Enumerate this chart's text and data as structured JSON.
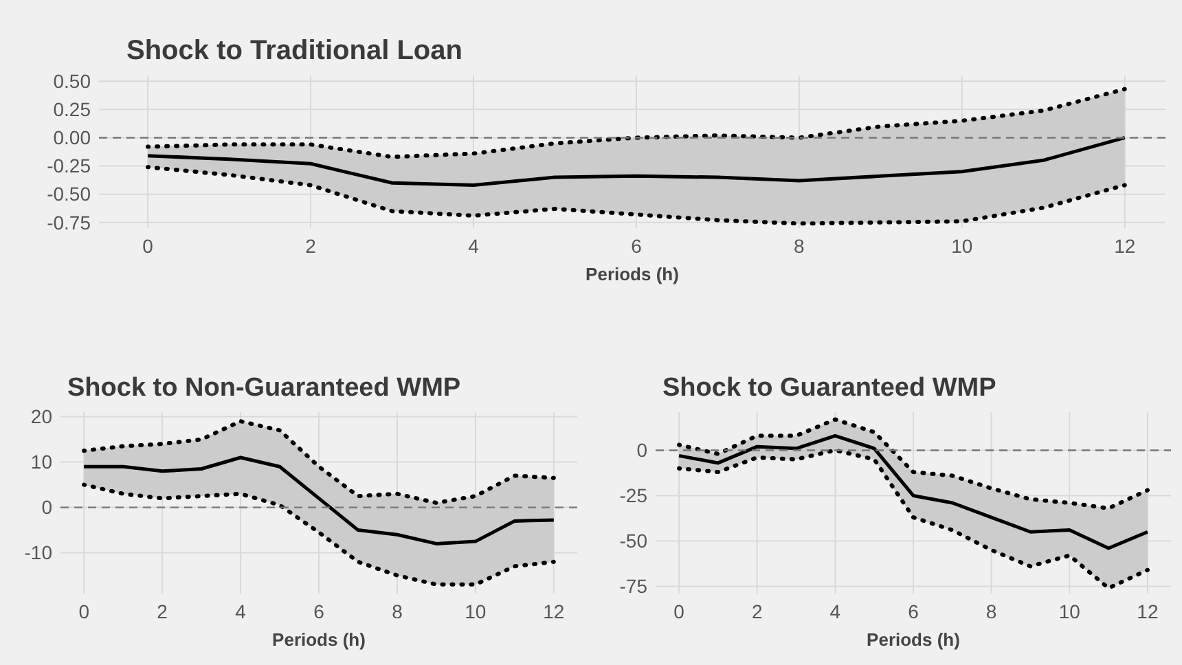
{
  "chart_data": [
    {
      "type": "line",
      "title": "Shock to Traditional Loan",
      "xlabel": "Periods (h)",
      "x": [
        0,
        1,
        2,
        3,
        4,
        5,
        6,
        7,
        8,
        9,
        10,
        11,
        12
      ],
      "xlim": [
        -0.6,
        12.5
      ],
      "xticks": [
        0,
        2,
        4,
        6,
        8,
        10,
        12
      ],
      "ylim": [
        -0.8,
        0.55
      ],
      "yticks": [
        {
          "value": -0.75,
          "label": "-0.75"
        },
        {
          "value": -0.5,
          "label": "-0.50"
        },
        {
          "value": -0.25,
          "label": "-0.25"
        },
        {
          "value": 0,
          "label": "0.00"
        },
        {
          "value": 0.25,
          "label": "0.25"
        },
        {
          "value": 0.5,
          "label": "0.50"
        }
      ],
      "grid": true,
      "line_style": "solid",
      "series": [
        {
          "color": "#000000",
          "values": [
            -0.16,
            -0.19,
            -0.23,
            -0.4,
            -0.42,
            -0.35,
            -0.34,
            -0.35,
            -0.38,
            -0.34,
            -0.3,
            -0.2,
            0.0
          ],
          "lower": [
            -0.26,
            -0.33,
            -0.42,
            -0.65,
            -0.69,
            -0.63,
            -0.68,
            -0.73,
            -0.76,
            -0.75,
            -0.74,
            -0.62,
            -0.42
          ],
          "upper": [
            -0.08,
            -0.06,
            -0.06,
            -0.17,
            -0.14,
            -0.05,
            0.0,
            0.02,
            0.0,
            0.1,
            0.15,
            0.24,
            0.43
          ]
        },
        {
          "color": "#000000",
          "line_style": "dotted",
          "values": [
            -0.26,
            -0.33,
            -0.42,
            -0.65,
            -0.69,
            -0.63,
            -0.68,
            -0.73,
            -0.76,
            -0.75,
            -0.74,
            -0.62,
            -0.42
          ]
        },
        {
          "color": "#000000",
          "line_style": "dotted",
          "values": [
            -0.08,
            -0.06,
            -0.06,
            -0.17,
            -0.14,
            -0.05,
            0.0,
            0.02,
            0.0,
            0.1,
            0.15,
            0.24,
            0.43
          ]
        }
      ],
      "ref_lines": [
        {
          "axis": "y",
          "value": 0,
          "line_style": "dashed",
          "color": "#777777"
        }
      ]
    },
    {
      "type": "line",
      "title": "Shock to Non-Guaranteed WMP",
      "xlabel": "Periods (h)",
      "x": [
        0,
        1,
        2,
        3,
        4,
        5,
        6,
        7,
        8,
        9,
        10,
        11,
        12
      ],
      "xlim": [
        -0.6,
        12.6
      ],
      "xticks": [
        0,
        2,
        4,
        6,
        8,
        10,
        12
      ],
      "ylim": [
        -19,
        21
      ],
      "yticks": [
        -10,
        0,
        10,
        20
      ],
      "grid": true,
      "line_style": "solid",
      "series": [
        {
          "color": "#000000",
          "values": [
            9,
            9,
            8,
            8.5,
            11,
            9,
            2,
            -5,
            -6,
            -8,
            -7.5,
            -3,
            -2.8
          ],
          "lower": [
            5,
            3,
            2,
            2.5,
            3,
            0.5,
            -5.5,
            -12,
            -15,
            -17,
            -17,
            -13,
            -12
          ],
          "upper": [
            12.5,
            13.5,
            14,
            15,
            19,
            17,
            9,
            2.5,
            3,
            1,
            2.5,
            7,
            6.5
          ]
        },
        {
          "color": "#000000",
          "line_style": "dotted",
          "values": [
            5,
            3,
            2,
            2.5,
            3,
            0.5,
            -5.5,
            -12,
            -15,
            -17,
            -17,
            -13,
            -12
          ]
        },
        {
          "color": "#000000",
          "line_style": "dotted",
          "values": [
            12.5,
            13.5,
            14,
            15,
            19,
            17,
            9,
            2.5,
            3,
            1,
            2.5,
            7,
            6.5
          ]
        }
      ],
      "ref_lines": [
        {
          "axis": "y",
          "value": 0,
          "line_style": "dashed",
          "color": "#777777"
        }
      ]
    },
    {
      "type": "line",
      "title": "Shock to Guaranteed WMP",
      "xlabel": "Periods (h)",
      "x": [
        0,
        1,
        2,
        3,
        4,
        5,
        6,
        7,
        8,
        9,
        10,
        11,
        12
      ],
      "xlim": [
        -0.6,
        12.6
      ],
      "xticks": [
        0,
        2,
        4,
        6,
        8,
        10,
        12
      ],
      "ylim": [
        -79,
        21
      ],
      "yticks": [
        -75,
        -50,
        -25,
        0
      ],
      "grid": true,
      "line_style": "solid",
      "series": [
        {
          "color": "#000000",
          "values": [
            -3,
            -7,
            2,
            1,
            8,
            1,
            -25,
            -29,
            -37,
            -45,
            -44,
            -54,
            -45
          ],
          "lower": [
            -10,
            -12,
            -4,
            -5,
            0,
            -5,
            -37,
            -44,
            -55,
            -64,
            -58,
            -76,
            -66
          ],
          "upper": [
            3,
            -2,
            8,
            8,
            17,
            10,
            -12,
            -14,
            -21,
            -27,
            -29,
            -32,
            -22
          ]
        },
        {
          "color": "#000000",
          "line_style": "dotted",
          "values": [
            -10,
            -12,
            -4,
            -5,
            0,
            -5,
            -37,
            -44,
            -55,
            -64,
            -58,
            -76,
            -66
          ]
        },
        {
          "color": "#000000",
          "line_style": "dotted",
          "values": [
            3,
            -2,
            8,
            8,
            17,
            10,
            -12,
            -14,
            -21,
            -27,
            -29,
            -32,
            -22
          ]
        }
      ],
      "ref_lines": [
        {
          "axis": "y",
          "value": 0,
          "line_style": "dashed",
          "color": "#777777"
        }
      ]
    }
  ]
}
